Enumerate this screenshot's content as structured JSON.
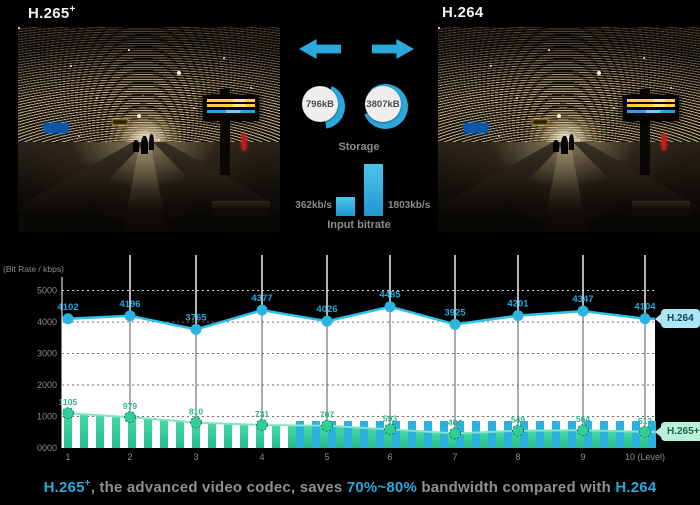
{
  "header": {
    "left_title": "H.265",
    "left_title_sup": "+",
    "right_title": "H.264"
  },
  "comparison": {
    "storage": {
      "label": "Storage",
      "h265_value": "796kB",
      "h264_value": "3807kB"
    },
    "input_bitrate": {
      "label": "Input bitrate",
      "h265_value": "362kb/s",
      "h264_value": "1803kb/s"
    },
    "icons": {
      "left": "arrow-left-icon",
      "right": "arrow-right-icon"
    }
  },
  "chart_data": {
    "type": "line",
    "title": "",
    "ylabel": "(Bit Rate / kbps)",
    "ylim": [
      0,
      5000
    ],
    "grid": "horizontal-dotted",
    "legend_position": "right",
    "x": [
      1,
      2,
      3,
      4,
      5,
      6,
      7,
      8,
      9,
      10
    ],
    "x_tick_labels": [
      "1",
      "2",
      "3",
      "4",
      "5",
      "6",
      "7",
      "8",
      "9",
      "10 (Level)"
    ],
    "y_tick_labels": [
      "5000",
      "4000",
      "3000",
      "2000",
      "1000",
      "0000"
    ],
    "y_tick_values": [
      5000,
      4000,
      3000,
      2000,
      1000,
      0
    ],
    "series": [
      {
        "name": "H.264",
        "style": "line-markers",
        "color": "#2cc0ea",
        "values": [
          4102,
          4196,
          3765,
          4377,
          4026,
          4485,
          3925,
          4201,
          4347,
          4104
        ]
      },
      {
        "name": "H.265+",
        "style": "line-markers-with-bars",
        "color": "#2fcf9a",
        "values": [
          1105,
          979,
          810,
          731,
          707,
          593,
          464,
          549,
          564,
          513
        ]
      }
    ],
    "legend": [
      {
        "label": "H.264"
      },
      {
        "label": "H.265+"
      }
    ]
  },
  "caption": {
    "codec": "H.265",
    "codec_sup": "+",
    "text_mid1": ", the advanced video codec, saves ",
    "highlight": "70%~80%",
    "text_mid2": " bandwidth compared with ",
    "codec2": "H.264"
  },
  "colors": {
    "accent_blue": "#29a8e0",
    "accent_green": "#2fcf9a",
    "gray_text": "#8c8c8c"
  }
}
